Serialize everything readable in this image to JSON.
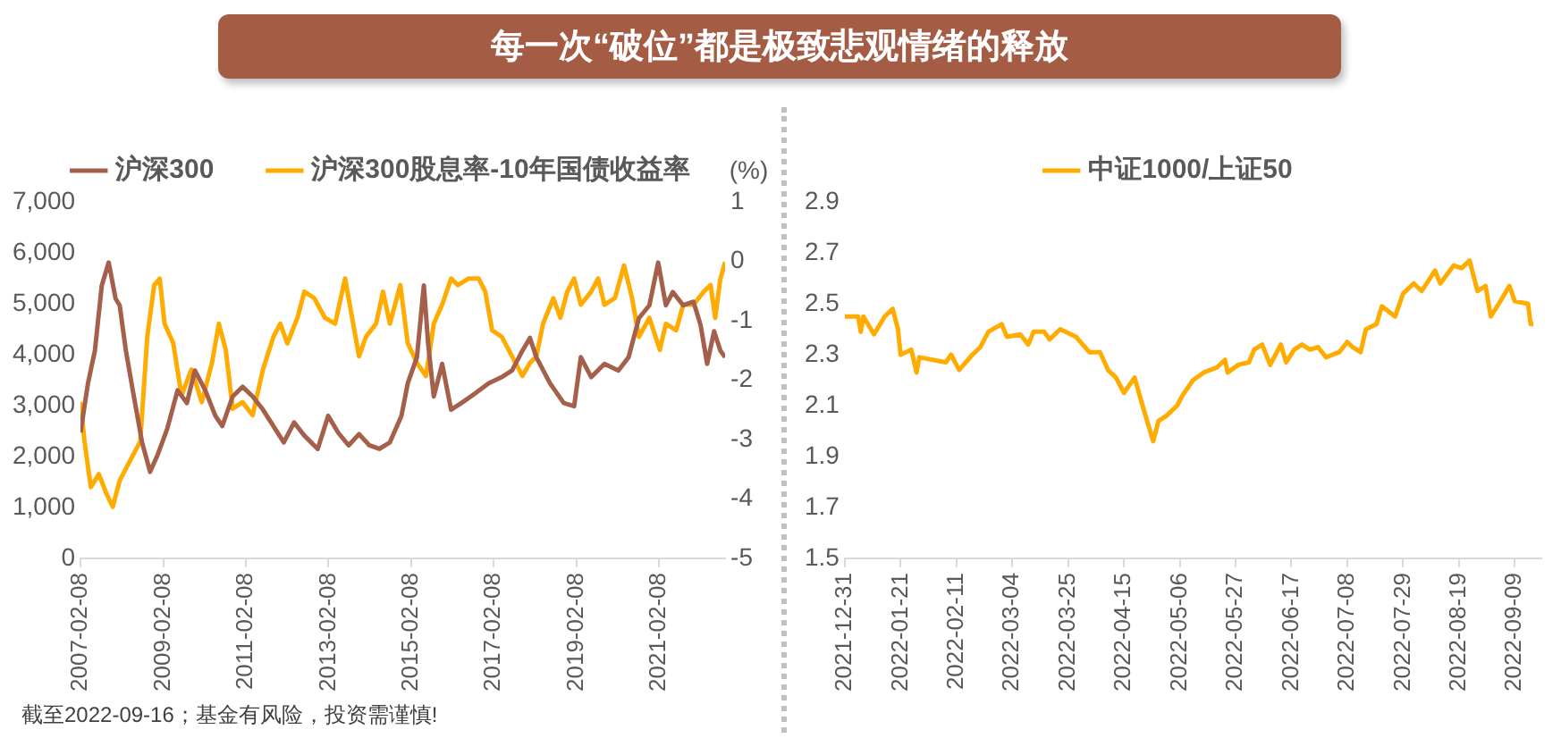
{
  "chart_data": [
    {
      "type": "line",
      "title": "每一次“破位”都是极致悲观情绪的释放",
      "annotations": [
        "截至2022-09-16；基金有风险，投资需谨慎!"
      ],
      "y2label": "(%)",
      "legend": "top",
      "grid": false,
      "xlim": [
        "2007-02-08",
        "2022-09-16"
      ],
      "xticks": [
        "2007-02-08",
        "2009-02-08",
        "2011-02-08",
        "2013-02-08",
        "2015-02-08",
        "2017-02-08",
        "2019-02-08",
        "2021-02-08"
      ],
      "ylim": [
        0,
        7000
      ],
      "yticks": [
        0,
        {
          "value": 1000,
          "label": "1,000"
        },
        {
          "value": 2000,
          "label": "2,000"
        },
        {
          "value": 3000,
          "label": "3,000"
        },
        {
          "value": 4000,
          "label": "4,000"
        },
        {
          "value": 5000,
          "label": "5,000"
        },
        {
          "value": 6000,
          "label": "6,000"
        },
        {
          "value": 7000,
          "label": "7,000"
        }
      ],
      "y2lim": [
        -5,
        1
      ],
      "y2ticks": [
        -5,
        -4,
        -3,
        -2,
        -1,
        0,
        1
      ],
      "series": [
        {
          "name": "沪深300",
          "color": "#a5604b",
          "x": [
            "2007-02-08",
            "2007-04-15",
            "2007-06-15",
            "2007-08-15",
            "2007-10-15",
            "2007-12-15",
            "2008-01-20",
            "2008-03-15",
            "2008-05-15",
            "2008-08-05",
            "2008-10-15",
            "2008-12-20",
            "2009-03-15",
            "2009-06-15",
            "2009-09-05",
            "2009-11-15",
            "2010-02-15",
            "2010-05-15",
            "2010-07-15",
            "2010-10-15",
            "2011-01-10",
            "2011-04-10",
            "2011-07-10",
            "2011-10-10",
            "2012-01-10",
            "2012-04-10",
            "2012-07-10",
            "2012-11-05",
            "2013-02-05",
            "2013-05-05",
            "2013-08-05",
            "2013-11-05",
            "2014-02-05",
            "2014-05-05",
            "2014-08-05",
            "2014-11-15",
            "2015-01-10",
            "2015-04-01",
            "2015-06-01",
            "2015-07-10",
            "2015-08-28",
            "2015-11-10",
            "2016-01-28",
            "2016-04-28",
            "2016-08-28",
            "2016-12-25",
            "2017-04-20",
            "2017-07-20",
            "2017-10-20",
            "2017-12-25",
            "2018-02-20",
            "2018-06-20",
            "2018-10-20",
            "2019-01-20",
            "2019-03-20",
            "2019-06-20",
            "2019-10-15",
            "2020-02-15",
            "2020-05-15",
            "2020-08-15",
            "2020-11-15",
            "2021-02-01",
            "2021-04-10",
            "2021-06-10",
            "2021-09-10",
            "2021-12-10",
            "2022-02-10",
            "2022-04-10",
            "2022-06-10",
            "2022-08-05",
            "2022-09-16"
          ],
          "values": [
            2475,
            3440,
            4080,
            5360,
            5810,
            5100,
            4970,
            4080,
            3300,
            2280,
            1700,
            2030,
            2540,
            3300,
            3050,
            3690,
            3300,
            2800,
            2600,
            3180,
            3370,
            3180,
            2920,
            2600,
            2280,
            2670,
            2410,
            2150,
            2800,
            2470,
            2220,
            2440,
            2220,
            2150,
            2280,
            2800,
            3440,
            3950,
            5360,
            4200,
            3180,
            3820,
            2920,
            3050,
            3240,
            3440,
            3560,
            3690,
            4080,
            4330,
            3950,
            3440,
            3050,
            2990,
            3950,
            3560,
            3820,
            3690,
            3950,
            4720,
            4970,
            5810,
            4970,
            5230,
            4970,
            5040,
            4590,
            3820,
            4460,
            4080,
            3950
          ]
        },
        {
          "name": "沪深300股息率-10年国债收益率",
          "color": "#ffab00",
          "axis": "y2",
          "x": [
            "2007-02-08",
            "2007-03-15",
            "2007-05-10",
            "2007-07-20",
            "2007-09-25",
            "2007-11-20",
            "2008-01-20",
            "2008-04-20",
            "2008-07-20",
            "2008-09-20",
            "2008-11-20",
            "2009-01-08",
            "2009-02-20",
            "2009-05-08",
            "2009-07-20",
            "2009-10-15",
            "2010-01-15",
            "2010-04-15",
            "2010-06-15",
            "2010-08-15",
            "2010-10-15",
            "2011-01-10",
            "2011-04-10",
            "2011-07-10",
            "2011-10-10",
            "2011-12-10",
            "2012-02-10",
            "2012-05-10",
            "2012-07-10",
            "2012-10-05",
            "2013-01-08",
            "2013-04-08",
            "2013-07-05",
            "2013-09-05",
            "2013-11-05",
            "2014-01-05",
            "2014-04-05",
            "2014-06-05",
            "2014-08-05",
            "2014-11-05",
            "2015-01-10",
            "2015-04-01",
            "2015-06-20",
            "2015-08-28",
            "2015-11-10",
            "2016-01-28",
            "2016-03-28",
            "2016-06-28",
            "2016-09-28",
            "2016-11-25",
            "2017-01-25",
            "2017-04-20",
            "2017-07-20",
            "2017-10-20",
            "2017-12-25",
            "2018-02-20",
            "2018-04-20",
            "2018-07-20",
            "2018-09-20",
            "2018-11-20",
            "2019-01-20",
            "2019-03-20",
            "2019-06-20",
            "2019-08-20",
            "2019-10-15",
            "2020-01-15",
            "2020-04-05",
            "2020-06-15",
            "2020-08-15",
            "2020-11-15",
            "2021-02-15",
            "2021-04-10",
            "2021-07-10",
            "2021-09-10",
            "2021-12-10",
            "2022-03-10",
            "2022-05-10",
            "2022-06-20",
            "2022-08-05",
            "2022-09-16"
          ],
          "values": [
            -2.37,
            -3.03,
            -3.8,
            -3.58,
            -3.91,
            -4.13,
            -3.69,
            -3.36,
            -3.03,
            -1.27,
            -0.4,
            -0.29,
            -1.05,
            -1.38,
            -2.26,
            -1.82,
            -2.37,
            -1.71,
            -1.05,
            -1.49,
            -2.48,
            -2.37,
            -2.59,
            -1.82,
            -1.27,
            -1.05,
            -1.38,
            -0.95,
            -0.51,
            -0.62,
            -0.95,
            -1.05,
            -0.29,
            -0.95,
            -1.6,
            -1.27,
            -1.05,
            -0.51,
            -1.05,
            -0.4,
            -1.38,
            -1.71,
            -1.93,
            -1.05,
            -0.73,
            -0.29,
            -0.4,
            -0.29,
            -0.29,
            -0.51,
            -1.16,
            -1.27,
            -1.6,
            -1.93,
            -1.71,
            -1.6,
            -1.05,
            -0.62,
            -0.95,
            -0.51,
            -0.29,
            -0.73,
            -0.51,
            -0.29,
            -0.73,
            -0.62,
            -0.07,
            -0.62,
            -1.27,
            -0.95,
            -1.49,
            -1.05,
            -1.16,
            -0.73,
            -0.73,
            -0.51,
            -0.4,
            -0.95,
            -0.29,
            -0.01
          ]
        }
      ]
    },
    {
      "type": "line",
      "legend": "top",
      "grid": false,
      "xlim": [
        "2021-12-31",
        "2022-09-19"
      ],
      "xticks": [
        "2021-12-31",
        "2022-01-21",
        "2022-02-11",
        "2022-03-04",
        "2022-03-25",
        "2022-04-15",
        "2022-05-06",
        "2022-05-27",
        "2022-06-17",
        "2022-07-08",
        "2022-07-29",
        "2022-08-19",
        "2022-09-09"
      ],
      "ylim": [
        1.5,
        2.9
      ],
      "yticks": [
        1.5,
        1.7,
        1.9,
        2.1,
        2.3,
        2.5,
        2.7,
        2.9
      ],
      "series": [
        {
          "name": "中证1000/上证50",
          "color": "#ffab00",
          "x": [
            "2021-12-31",
            "2022-01-05",
            "2022-01-06",
            "2022-01-07",
            "2022-01-11",
            "2022-01-15",
            "2022-01-18",
            "2022-01-20",
            "2022-01-21",
            "2022-01-25",
            "2022-01-27",
            "2022-01-28",
            "2022-02-07",
            "2022-02-09",
            "2022-02-12",
            "2022-02-17",
            "2022-02-20",
            "2022-02-23",
            "2022-02-28",
            "2022-03-02",
            "2022-03-07",
            "2022-03-10",
            "2022-03-12",
            "2022-03-16",
            "2022-03-18",
            "2022-03-22",
            "2022-03-28",
            "2022-04-02",
            "2022-04-06",
            "2022-04-09",
            "2022-04-12",
            "2022-04-15",
            "2022-04-19",
            "2022-04-22",
            "2022-04-26",
            "2022-04-28",
            "2022-05-01",
            "2022-05-05",
            "2022-05-07",
            "2022-05-11",
            "2022-05-15",
            "2022-05-20",
            "2022-05-23",
            "2022-05-24",
            "2022-05-28",
            "2022-06-01",
            "2022-06-03",
            "2022-06-06",
            "2022-06-09",
            "2022-06-13",
            "2022-06-15",
            "2022-06-18",
            "2022-06-21",
            "2022-06-24",
            "2022-06-27",
            "2022-06-30",
            "2022-07-05",
            "2022-07-08",
            "2022-07-10",
            "2022-07-13",
            "2022-07-15",
            "2022-07-19",
            "2022-07-21",
            "2022-07-26",
            "2022-07-29",
            "2022-08-02",
            "2022-08-05",
            "2022-08-10",
            "2022-08-12",
            "2022-08-17",
            "2022-08-20",
            "2022-08-23",
            "2022-08-26",
            "2022-08-29",
            "2022-08-31",
            "2022-09-03",
            "2022-09-07",
            "2022-09-09",
            "2022-09-14",
            "2022-09-15",
            "2022-09-16"
          ],
          "values": [
            2.45,
            2.45,
            2.39,
            2.45,
            2.38,
            2.45,
            2.48,
            2.4,
            2.3,
            2.32,
            2.23,
            2.29,
            2.27,
            2.3,
            2.24,
            2.3,
            2.33,
            2.39,
            2.42,
            2.37,
            2.38,
            2.34,
            2.39,
            2.39,
            2.36,
            2.4,
            2.37,
            2.31,
            2.31,
            2.24,
            2.21,
            2.15,
            2.21,
            2.1,
            1.96,
            2.04,
            2.06,
            2.1,
            2.14,
            2.2,
            2.23,
            2.25,
            2.28,
            2.23,
            2.26,
            2.27,
            2.32,
            2.34,
            2.26,
            2.34,
            2.27,
            2.32,
            2.34,
            2.32,
            2.33,
            2.29,
            2.31,
            2.35,
            2.33,
            2.31,
            2.4,
            2.42,
            2.49,
            2.45,
            2.54,
            2.58,
            2.55,
            2.63,
            2.58,
            2.65,
            2.64,
            2.67,
            2.55,
            2.57,
            2.45,
            2.5,
            2.57,
            2.51,
            2.5,
            2.42,
            2.42
          ]
        }
      ]
    }
  ]
}
